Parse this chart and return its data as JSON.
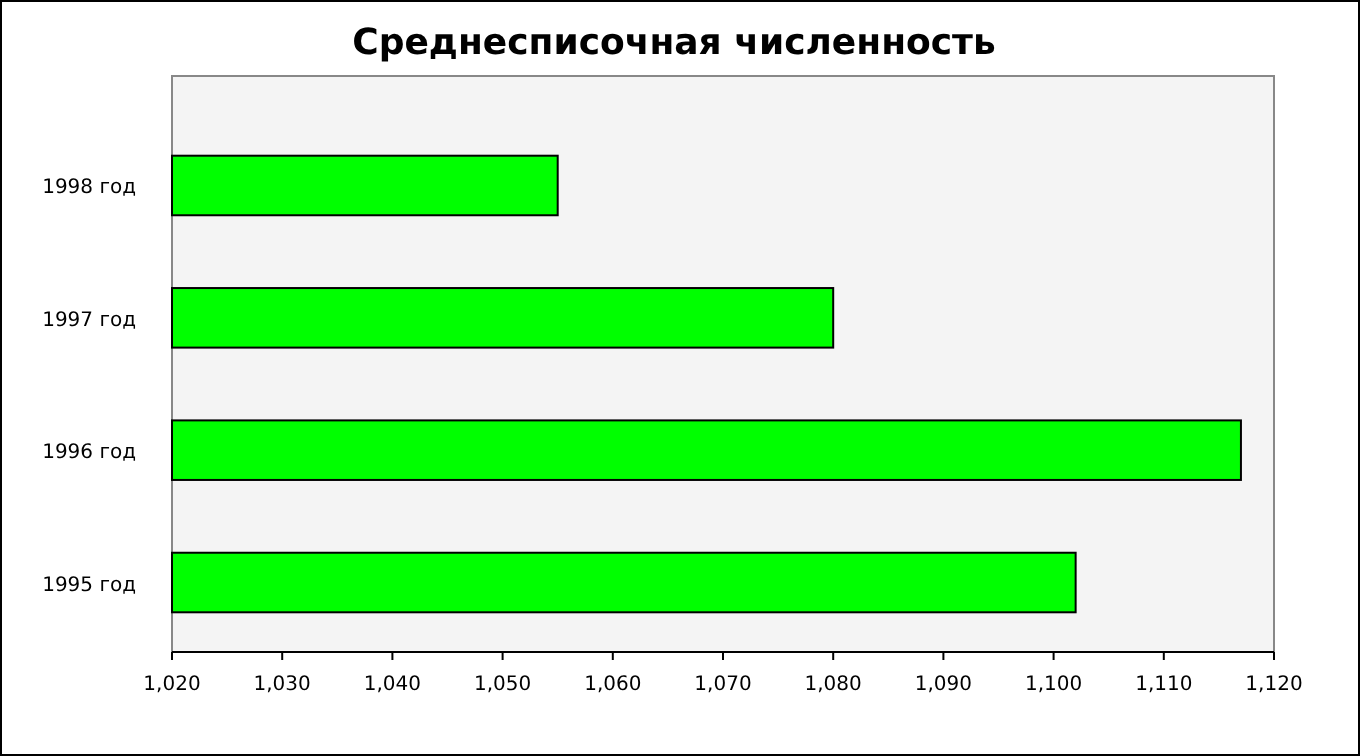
{
  "chart_data": {
    "type": "bar",
    "orientation": "horizontal",
    "title": "Среднесписочная численность",
    "categories": [
      "1998 год",
      "1997 год",
      "1996 год",
      "1995 год"
    ],
    "values": [
      1055,
      1080,
      1117,
      1102
    ],
    "color": "#00ff00",
    "xlim": [
      1020,
      1120
    ],
    "xticks": [
      {
        "value": 1020,
        "label": "1,020"
      },
      {
        "value": 1030,
        "label": "1,030"
      },
      {
        "value": 1040,
        "label": "1,040"
      },
      {
        "value": 1050,
        "label": "1,050"
      },
      {
        "value": 1060,
        "label": "1,060"
      },
      {
        "value": 1070,
        "label": "1,070"
      },
      {
        "value": 1080,
        "label": "1,080"
      },
      {
        "value": 1090,
        "label": "1,090"
      },
      {
        "value": 1100,
        "label": "1,100"
      },
      {
        "value": 1110,
        "label": "1,110"
      },
      {
        "value": 1120,
        "label": "1,120"
      }
    ]
  }
}
